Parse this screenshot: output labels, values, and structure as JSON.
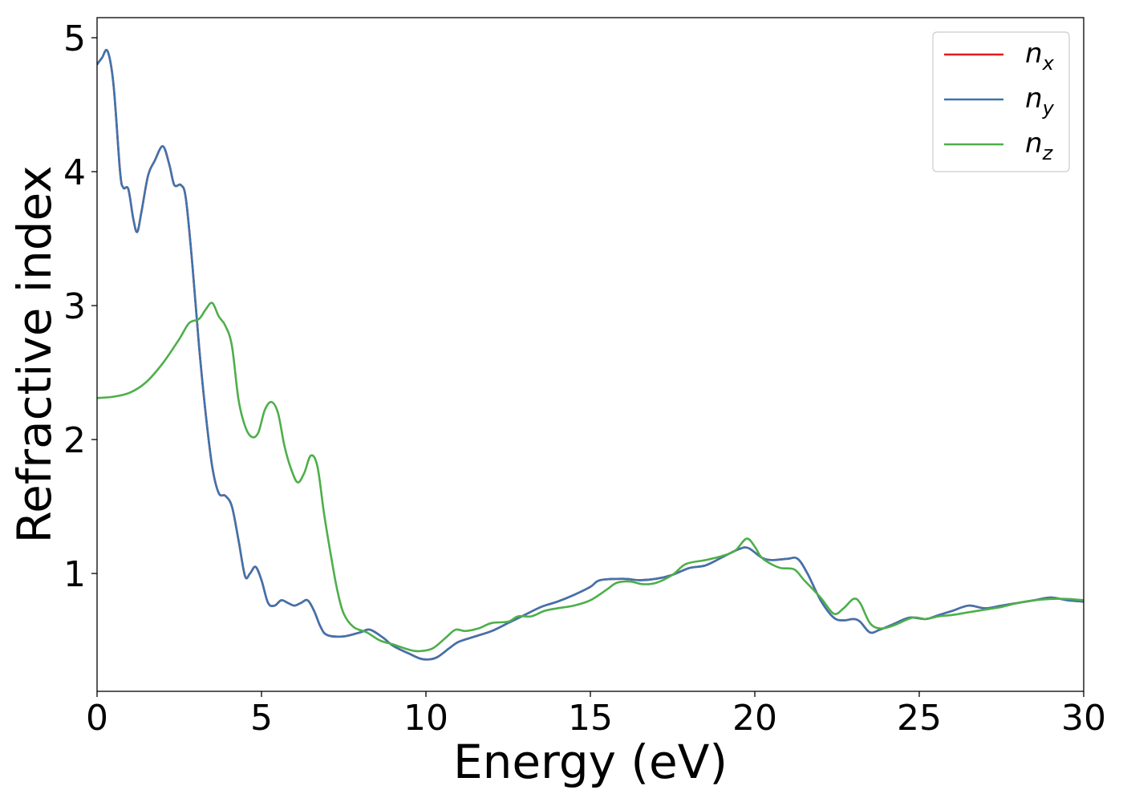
{
  "chart_data": {
    "type": "line",
    "title": "",
    "xlabel": "Energy (eV)",
    "ylabel": "Refractive index",
    "xlim": [
      0,
      30
    ],
    "ylim": [
      0.12,
      5.15
    ],
    "xticks": [
      0,
      5,
      10,
      15,
      20,
      25,
      30
    ],
    "yticks": [
      1,
      2,
      3,
      4,
      5
    ],
    "xtick_labels": [
      "0",
      "5",
      "10",
      "15",
      "20",
      "25",
      "30"
    ],
    "ytick_labels": [
      "1",
      "2",
      "3",
      "4",
      "5"
    ],
    "grid": false,
    "legend_position": "top-right",
    "legend": [
      {
        "base": "n",
        "sub": "x",
        "color": "#e41a1c"
      },
      {
        "base": "n",
        "sub": "y",
        "color": "#3f73ad"
      },
      {
        "base": "n",
        "sub": "z",
        "color": "#4daf4a"
      }
    ],
    "series": [
      {
        "name": "n_x",
        "color": "#e41a1c",
        "points": [
          [
            0,
            4.8
          ],
          [
            0.15,
            4.85
          ],
          [
            0.32,
            4.9
          ],
          [
            0.5,
            4.65
          ],
          [
            0.7,
            4.0
          ],
          [
            0.8,
            3.88
          ],
          [
            0.95,
            3.87
          ],
          [
            1.1,
            3.65
          ],
          [
            1.22,
            3.55
          ],
          [
            1.35,
            3.7
          ],
          [
            1.55,
            3.97
          ],
          [
            1.75,
            4.08
          ],
          [
            2.0,
            4.19
          ],
          [
            2.2,
            4.05
          ],
          [
            2.35,
            3.9
          ],
          [
            2.55,
            3.9
          ],
          [
            2.7,
            3.8
          ],
          [
            2.9,
            3.3
          ],
          [
            3.1,
            2.7
          ],
          [
            3.3,
            2.2
          ],
          [
            3.5,
            1.8
          ],
          [
            3.7,
            1.6
          ],
          [
            3.9,
            1.58
          ],
          [
            4.1,
            1.5
          ],
          [
            4.3,
            1.25
          ],
          [
            4.5,
            0.98
          ],
          [
            4.65,
            1.0
          ],
          [
            4.82,
            1.05
          ],
          [
            5.0,
            0.95
          ],
          [
            5.2,
            0.78
          ],
          [
            5.4,
            0.76
          ],
          [
            5.6,
            0.8
          ],
          [
            5.8,
            0.78
          ],
          [
            6.0,
            0.76
          ],
          [
            6.2,
            0.78
          ],
          [
            6.4,
            0.8
          ],
          [
            6.6,
            0.72
          ],
          [
            6.8,
            0.6
          ],
          [
            7.0,
            0.54
          ],
          [
            7.5,
            0.53
          ],
          [
            8.0,
            0.56
          ],
          [
            8.3,
            0.58
          ],
          [
            8.7,
            0.52
          ],
          [
            9.0,
            0.46
          ],
          [
            9.5,
            0.4
          ],
          [
            9.9,
            0.36
          ],
          [
            10.3,
            0.37
          ],
          [
            10.7,
            0.44
          ],
          [
            11.0,
            0.49
          ],
          [
            11.5,
            0.53
          ],
          [
            12.0,
            0.57
          ],
          [
            12.5,
            0.63
          ],
          [
            13.0,
            0.69
          ],
          [
            13.5,
            0.75
          ],
          [
            14.0,
            0.79
          ],
          [
            14.5,
            0.84
          ],
          [
            15.0,
            0.9
          ],
          [
            15.3,
            0.95
          ],
          [
            16.0,
            0.96
          ],
          [
            16.5,
            0.95
          ],
          [
            17.0,
            0.96
          ],
          [
            17.5,
            0.99
          ],
          [
            18.0,
            1.04
          ],
          [
            18.5,
            1.06
          ],
          [
            19.0,
            1.12
          ],
          [
            19.5,
            1.18
          ],
          [
            19.8,
            1.19
          ],
          [
            20.2,
            1.12
          ],
          [
            20.5,
            1.1
          ],
          [
            21.0,
            1.11
          ],
          [
            21.3,
            1.11
          ],
          [
            21.6,
            1.0
          ],
          [
            22.0,
            0.8
          ],
          [
            22.4,
            0.67
          ],
          [
            22.7,
            0.65
          ],
          [
            23.0,
            0.66
          ],
          [
            23.2,
            0.64
          ],
          [
            23.5,
            0.56
          ],
          [
            23.8,
            0.58
          ],
          [
            24.2,
            0.62
          ],
          [
            24.7,
            0.67
          ],
          [
            25.2,
            0.66
          ],
          [
            25.6,
            0.69
          ],
          [
            26.0,
            0.72
          ],
          [
            26.5,
            0.76
          ],
          [
            27.0,
            0.74
          ],
          [
            27.5,
            0.76
          ],
          [
            28.0,
            0.78
          ],
          [
            28.5,
            0.8
          ],
          [
            29.0,
            0.82
          ],
          [
            29.5,
            0.8
          ],
          [
            30.0,
            0.79
          ]
        ]
      },
      {
        "name": "n_y",
        "color": "#3f73ad",
        "points": [
          [
            0,
            4.8
          ],
          [
            0.15,
            4.85
          ],
          [
            0.32,
            4.9
          ],
          [
            0.5,
            4.65
          ],
          [
            0.7,
            4.0
          ],
          [
            0.8,
            3.88
          ],
          [
            0.95,
            3.87
          ],
          [
            1.1,
            3.65
          ],
          [
            1.22,
            3.55
          ],
          [
            1.35,
            3.7
          ],
          [
            1.55,
            3.97
          ],
          [
            1.75,
            4.08
          ],
          [
            2.0,
            4.19
          ],
          [
            2.2,
            4.05
          ],
          [
            2.35,
            3.9
          ],
          [
            2.55,
            3.9
          ],
          [
            2.7,
            3.8
          ],
          [
            2.9,
            3.3
          ],
          [
            3.1,
            2.7
          ],
          [
            3.3,
            2.2
          ],
          [
            3.5,
            1.8
          ],
          [
            3.7,
            1.6
          ],
          [
            3.9,
            1.58
          ],
          [
            4.1,
            1.5
          ],
          [
            4.3,
            1.25
          ],
          [
            4.5,
            0.98
          ],
          [
            4.65,
            1.0
          ],
          [
            4.82,
            1.05
          ],
          [
            5.0,
            0.95
          ],
          [
            5.2,
            0.78
          ],
          [
            5.4,
            0.76
          ],
          [
            5.6,
            0.8
          ],
          [
            5.8,
            0.78
          ],
          [
            6.0,
            0.76
          ],
          [
            6.2,
            0.78
          ],
          [
            6.4,
            0.8
          ],
          [
            6.6,
            0.72
          ],
          [
            6.8,
            0.6
          ],
          [
            7.0,
            0.54
          ],
          [
            7.5,
            0.53
          ],
          [
            8.0,
            0.56
          ],
          [
            8.3,
            0.58
          ],
          [
            8.7,
            0.52
          ],
          [
            9.0,
            0.46
          ],
          [
            9.5,
            0.4
          ],
          [
            9.9,
            0.36
          ],
          [
            10.3,
            0.37
          ],
          [
            10.7,
            0.44
          ],
          [
            11.0,
            0.49
          ],
          [
            11.5,
            0.53
          ],
          [
            12.0,
            0.57
          ],
          [
            12.5,
            0.63
          ],
          [
            13.0,
            0.69
          ],
          [
            13.5,
            0.75
          ],
          [
            14.0,
            0.79
          ],
          [
            14.5,
            0.84
          ],
          [
            15.0,
            0.9
          ],
          [
            15.3,
            0.95
          ],
          [
            16.0,
            0.96
          ],
          [
            16.5,
            0.95
          ],
          [
            17.0,
            0.96
          ],
          [
            17.5,
            0.99
          ],
          [
            18.0,
            1.04
          ],
          [
            18.5,
            1.06
          ],
          [
            19.0,
            1.12
          ],
          [
            19.5,
            1.18
          ],
          [
            19.8,
            1.19
          ],
          [
            20.2,
            1.12
          ],
          [
            20.5,
            1.1
          ],
          [
            21.0,
            1.11
          ],
          [
            21.3,
            1.11
          ],
          [
            21.6,
            1.0
          ],
          [
            22.0,
            0.8
          ],
          [
            22.4,
            0.67
          ],
          [
            22.7,
            0.65
          ],
          [
            23.0,
            0.66
          ],
          [
            23.2,
            0.64
          ],
          [
            23.5,
            0.56
          ],
          [
            23.8,
            0.58
          ],
          [
            24.2,
            0.62
          ],
          [
            24.7,
            0.67
          ],
          [
            25.2,
            0.66
          ],
          [
            25.6,
            0.69
          ],
          [
            26.0,
            0.72
          ],
          [
            26.5,
            0.76
          ],
          [
            27.0,
            0.74
          ],
          [
            27.5,
            0.76
          ],
          [
            28.0,
            0.78
          ],
          [
            28.5,
            0.8
          ],
          [
            29.0,
            0.82
          ],
          [
            29.5,
            0.8
          ],
          [
            30.0,
            0.79
          ]
        ]
      },
      {
        "name": "n_z",
        "color": "#4daf4a",
        "points": [
          [
            0,
            2.31
          ],
          [
            0.5,
            2.32
          ],
          [
            1.0,
            2.35
          ],
          [
            1.5,
            2.43
          ],
          [
            2.0,
            2.57
          ],
          [
            2.5,
            2.75
          ],
          [
            2.8,
            2.87
          ],
          [
            3.1,
            2.9
          ],
          [
            3.3,
            2.97
          ],
          [
            3.5,
            3.02
          ],
          [
            3.7,
            2.92
          ],
          [
            3.9,
            2.85
          ],
          [
            4.1,
            2.7
          ],
          [
            4.3,
            2.3
          ],
          [
            4.5,
            2.1
          ],
          [
            4.7,
            2.02
          ],
          [
            4.9,
            2.05
          ],
          [
            5.1,
            2.22
          ],
          [
            5.3,
            2.28
          ],
          [
            5.5,
            2.2
          ],
          [
            5.7,
            1.95
          ],
          [
            5.9,
            1.78
          ],
          [
            6.1,
            1.68
          ],
          [
            6.3,
            1.75
          ],
          [
            6.5,
            1.88
          ],
          [
            6.7,
            1.8
          ],
          [
            6.9,
            1.45
          ],
          [
            7.1,
            1.15
          ],
          [
            7.3,
            0.88
          ],
          [
            7.5,
            0.7
          ],
          [
            7.8,
            0.6
          ],
          [
            8.2,
            0.56
          ],
          [
            8.6,
            0.5
          ],
          [
            9.0,
            0.47
          ],
          [
            9.5,
            0.43
          ],
          [
            9.8,
            0.42
          ],
          [
            10.2,
            0.44
          ],
          [
            10.6,
            0.52
          ],
          [
            10.9,
            0.58
          ],
          [
            11.2,
            0.57
          ],
          [
            11.6,
            0.59
          ],
          [
            12.0,
            0.63
          ],
          [
            12.5,
            0.64
          ],
          [
            12.8,
            0.68
          ],
          [
            13.2,
            0.68
          ],
          [
            13.6,
            0.72
          ],
          [
            14.0,
            0.74
          ],
          [
            14.5,
            0.76
          ],
          [
            15.0,
            0.8
          ],
          [
            15.5,
            0.88
          ],
          [
            15.8,
            0.93
          ],
          [
            16.2,
            0.94
          ],
          [
            16.6,
            0.92
          ],
          [
            17.0,
            0.93
          ],
          [
            17.5,
            0.99
          ],
          [
            17.9,
            1.07
          ],
          [
            18.5,
            1.1
          ],
          [
            19.0,
            1.13
          ],
          [
            19.4,
            1.17
          ],
          [
            19.75,
            1.26
          ],
          [
            20.0,
            1.2
          ],
          [
            20.2,
            1.12
          ],
          [
            20.5,
            1.07
          ],
          [
            20.8,
            1.04
          ],
          [
            21.2,
            1.03
          ],
          [
            21.5,
            0.95
          ],
          [
            22.0,
            0.82
          ],
          [
            22.4,
            0.7
          ],
          [
            22.7,
            0.74
          ],
          [
            23.0,
            0.81
          ],
          [
            23.2,
            0.78
          ],
          [
            23.5,
            0.63
          ],
          [
            23.8,
            0.59
          ],
          [
            24.2,
            0.61
          ],
          [
            24.8,
            0.67
          ],
          [
            25.2,
            0.66
          ],
          [
            25.6,
            0.68
          ],
          [
            26.0,
            0.69
          ],
          [
            26.5,
            0.71
          ],
          [
            27.0,
            0.73
          ],
          [
            27.5,
            0.75
          ],
          [
            28.0,
            0.78
          ],
          [
            28.5,
            0.8
          ],
          [
            29.0,
            0.81
          ],
          [
            29.5,
            0.81
          ],
          [
            30.0,
            0.8
          ]
        ]
      }
    ]
  }
}
